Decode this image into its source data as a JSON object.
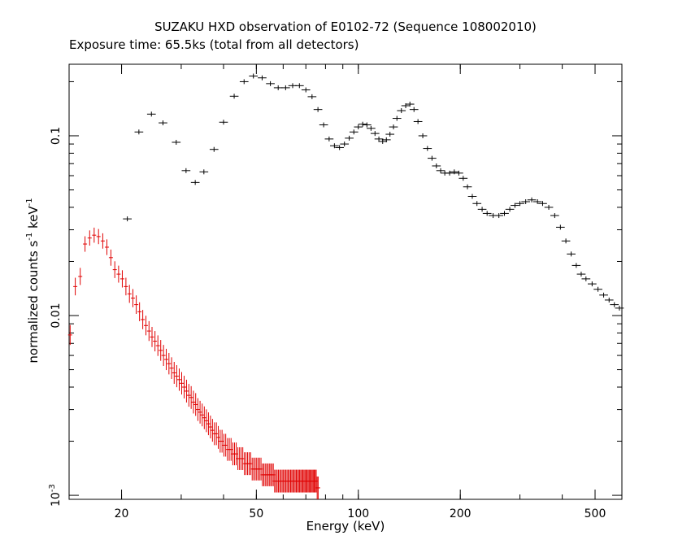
{
  "chart_data": {
    "type": "scatter",
    "title": "SUZAKU HXD observation of E0102-72 (Sequence 108002010)",
    "subtitle": "Exposure time: 65.5ks (total from all detectors)",
    "xlabel": "Energy (keV)",
    "ylabel_main": "normalized counts s",
    "ylabel_sup1": "-1",
    "ylabel_mid": " keV",
    "ylabel_sup2": "-1",
    "x_scale": "log",
    "y_scale": "log",
    "xlim": [
      14,
      600
    ],
    "ylim": [
      0.00095,
      0.25
    ],
    "x_ticks": [
      {
        "value": 20,
        "label": "20"
      },
      {
        "value": 50,
        "label": "50"
      },
      {
        "value": 100,
        "label": "100"
      },
      {
        "value": 200,
        "label": "200"
      },
      {
        "value": 500,
        "label": "500"
      }
    ],
    "y_ticks": [
      {
        "value": 0.1,
        "label": "0.1"
      },
      {
        "value": 0.01,
        "label": "0.01"
      },
      {
        "value": 0.001,
        "label_base": "10",
        "label_exp": "-3"
      }
    ],
    "grid": false,
    "series": [
      {
        "color": "#000000",
        "points": [
          [
            20.8,
            0.0345
          ],
          [
            22.5,
            0.105
          ],
          [
            24.5,
            0.132
          ],
          [
            26.5,
            0.118
          ],
          [
            29,
            0.092
          ],
          [
            31,
            0.064
          ],
          [
            33,
            0.055
          ],
          [
            35,
            0.063
          ],
          [
            37.5,
            0.084
          ],
          [
            40,
            0.119
          ],
          [
            43,
            0.166
          ],
          [
            46,
            0.2
          ],
          [
            49,
            0.215
          ],
          [
            52,
            0.21
          ],
          [
            55,
            0.195
          ],
          [
            58,
            0.185
          ],
          [
            61,
            0.185
          ],
          [
            64,
            0.19
          ],
          [
            67,
            0.19
          ],
          [
            70,
            0.18
          ],
          [
            73,
            0.165
          ],
          [
            76,
            0.14
          ],
          [
            79,
            0.115
          ],
          [
            82,
            0.096
          ],
          [
            85,
            0.088
          ],
          [
            88,
            0.086
          ],
          [
            91,
            0.09
          ],
          [
            94,
            0.097
          ],
          [
            97,
            0.105
          ],
          [
            100,
            0.112
          ],
          [
            103,
            0.116
          ],
          [
            106,
            0.115
          ],
          [
            109,
            0.11
          ],
          [
            112,
            0.103
          ],
          [
            115,
            0.096
          ],
          [
            118,
            0.093
          ],
          [
            121,
            0.095
          ],
          [
            124,
            0.102
          ],
          [
            127,
            0.112
          ],
          [
            130,
            0.125
          ],
          [
            134,
            0.138
          ],
          [
            138,
            0.147
          ],
          [
            142,
            0.15
          ],
          [
            146,
            0.14
          ],
          [
            150,
            0.12
          ],
          [
            155,
            0.1
          ],
          [
            160,
            0.085
          ],
          [
            165,
            0.075
          ],
          [
            170,
            0.068
          ],
          [
            175,
            0.064
          ],
          [
            180,
            0.062
          ],
          [
            186,
            0.062
          ],
          [
            192,
            0.063
          ],
          [
            198,
            0.062
          ],
          [
            204,
            0.058
          ],
          [
            210,
            0.052
          ],
          [
            217,
            0.046
          ],
          [
            224,
            0.042
          ],
          [
            232,
            0.039
          ],
          [
            240,
            0.037
          ],
          [
            250,
            0.036
          ],
          [
            260,
            0.036
          ],
          [
            270,
            0.037
          ],
          [
            280,
            0.039
          ],
          [
            290,
            0.041
          ],
          [
            300,
            0.042
          ],
          [
            312,
            0.043
          ],
          [
            325,
            0.044
          ],
          [
            338,
            0.043
          ],
          [
            350,
            0.042
          ],
          [
            365,
            0.04
          ],
          [
            380,
            0.036
          ],
          [
            395,
            0.031
          ],
          [
            410,
            0.026
          ],
          [
            425,
            0.022
          ],
          [
            440,
            0.019
          ],
          [
            455,
            0.017
          ],
          [
            470,
            0.016
          ],
          [
            490,
            0.015
          ],
          [
            510,
            0.014
          ],
          [
            530,
            0.013
          ],
          [
            550,
            0.0122
          ],
          [
            570,
            0.0115
          ],
          [
            590,
            0.011
          ]
        ]
      },
      {
        "color": "#e00000",
        "points": [
          [
            14.1,
            0.0078
          ],
          [
            14.6,
            0.0145
          ],
          [
            15.1,
            0.0165
          ],
          [
            15.6,
            0.025
          ],
          [
            16.1,
            0.027
          ],
          [
            16.6,
            0.028
          ],
          [
            17.1,
            0.0275
          ],
          [
            17.6,
            0.026
          ],
          [
            18.1,
            0.024
          ],
          [
            18.6,
            0.021
          ],
          [
            19.1,
            0.018
          ],
          [
            19.6,
            0.017
          ],
          [
            20.1,
            0.016
          ],
          [
            20.6,
            0.0145
          ],
          [
            21.1,
            0.0132
          ],
          [
            21.6,
            0.0125
          ],
          [
            22.1,
            0.0115
          ],
          [
            22.6,
            0.0105
          ],
          [
            23.1,
            0.0095
          ],
          [
            23.6,
            0.0088
          ],
          [
            24.1,
            0.0082
          ],
          [
            24.6,
            0.0076
          ],
          [
            25.1,
            0.0072
          ],
          [
            25.6,
            0.0068
          ],
          [
            26.1,
            0.0064
          ],
          [
            26.6,
            0.006
          ],
          [
            27.1,
            0.0057
          ],
          [
            27.6,
            0.0054
          ],
          [
            28.1,
            0.0051
          ],
          [
            28.6,
            0.0048
          ],
          [
            29.1,
            0.0046
          ],
          [
            29.6,
            0.0044
          ],
          [
            30.1,
            0.0042
          ],
          [
            30.6,
            0.004
          ],
          [
            31.1,
            0.0038
          ],
          [
            31.6,
            0.0036
          ],
          [
            32.1,
            0.0035
          ],
          [
            32.6,
            0.0033
          ],
          [
            33.1,
            0.0032
          ],
          [
            33.6,
            0.003
          ],
          [
            34.1,
            0.0029
          ],
          [
            34.6,
            0.0028
          ],
          [
            35.1,
            0.0027
          ],
          [
            35.6,
            0.0026
          ],
          [
            36.1,
            0.0025
          ],
          [
            36.6,
            0.0024
          ],
          [
            37.1,
            0.0023
          ],
          [
            37.6,
            0.0022
          ],
          [
            38.1,
            0.0022
          ],
          [
            38.6,
            0.0021
          ],
          [
            39.1,
            0.002
          ],
          [
            39.6,
            0.002
          ],
          [
            40.1,
            0.0019
          ],
          [
            40.6,
            0.0019
          ],
          [
            41.1,
            0.0018
          ],
          [
            41.6,
            0.0018
          ],
          [
            42.1,
            0.0018
          ],
          [
            42.6,
            0.0017
          ],
          [
            43.1,
            0.0017
          ],
          [
            43.6,
            0.0017
          ],
          [
            44.1,
            0.0016
          ],
          [
            44.6,
            0.0016
          ],
          [
            45.1,
            0.0016
          ],
          [
            45.6,
            0.0016
          ],
          [
            46.1,
            0.0015
          ],
          [
            46.6,
            0.0015
          ],
          [
            47.1,
            0.0015
          ],
          [
            47.6,
            0.0015
          ],
          [
            48.1,
            0.0015
          ],
          [
            48.6,
            0.0014
          ],
          [
            49.1,
            0.0014
          ],
          [
            49.6,
            0.0014
          ],
          [
            50.1,
            0.0014
          ],
          [
            50.6,
            0.0014
          ],
          [
            51.1,
            0.0014
          ],
          [
            51.6,
            0.0014
          ],
          [
            52.1,
            0.0013
          ],
          [
            52.6,
            0.0013
          ],
          [
            53.1,
            0.0013
          ],
          [
            53.6,
            0.0013
          ],
          [
            54.1,
            0.0013
          ],
          [
            54.6,
            0.0013
          ],
          [
            55.1,
            0.0013
          ],
          [
            55.6,
            0.0013
          ],
          [
            56.1,
            0.0013
          ],
          [
            56.6,
            0.0012
          ],
          [
            57.1,
            0.0012
          ],
          [
            57.6,
            0.0012
          ],
          [
            58.1,
            0.0012
          ],
          [
            58.6,
            0.0012
          ],
          [
            59.1,
            0.0012
          ],
          [
            59.6,
            0.0012
          ],
          [
            60.1,
            0.0012
          ],
          [
            60.6,
            0.0012
          ],
          [
            61.1,
            0.0012
          ],
          [
            61.6,
            0.0012
          ],
          [
            62.1,
            0.0012
          ],
          [
            62.6,
            0.0012
          ],
          [
            63.1,
            0.0012
          ],
          [
            63.6,
            0.0012
          ],
          [
            64.1,
            0.0012
          ],
          [
            64.6,
            0.0012
          ],
          [
            65.1,
            0.0012
          ],
          [
            65.6,
            0.0012
          ],
          [
            66.1,
            0.0012
          ],
          [
            66.6,
            0.0012
          ],
          [
            67.1,
            0.0012
          ],
          [
            67.6,
            0.0012
          ],
          [
            68.1,
            0.0012
          ],
          [
            68.6,
            0.0012
          ],
          [
            69.1,
            0.0012
          ],
          [
            69.6,
            0.0012
          ],
          [
            70.1,
            0.0012
          ],
          [
            70.6,
            0.0012
          ],
          [
            71.1,
            0.0012
          ],
          [
            71.6,
            0.0012
          ],
          [
            72.1,
            0.0012
          ],
          [
            72.6,
            0.0012
          ],
          [
            73.1,
            0.0012
          ],
          [
            73.6,
            0.0012
          ],
          [
            74.1,
            0.0012
          ],
          [
            74.6,
            0.0012
          ],
          [
            75.1,
            0.0012
          ],
          [
            75.6,
            0.0011
          ],
          [
            76.1,
            0.0011
          ]
        ]
      }
    ]
  }
}
